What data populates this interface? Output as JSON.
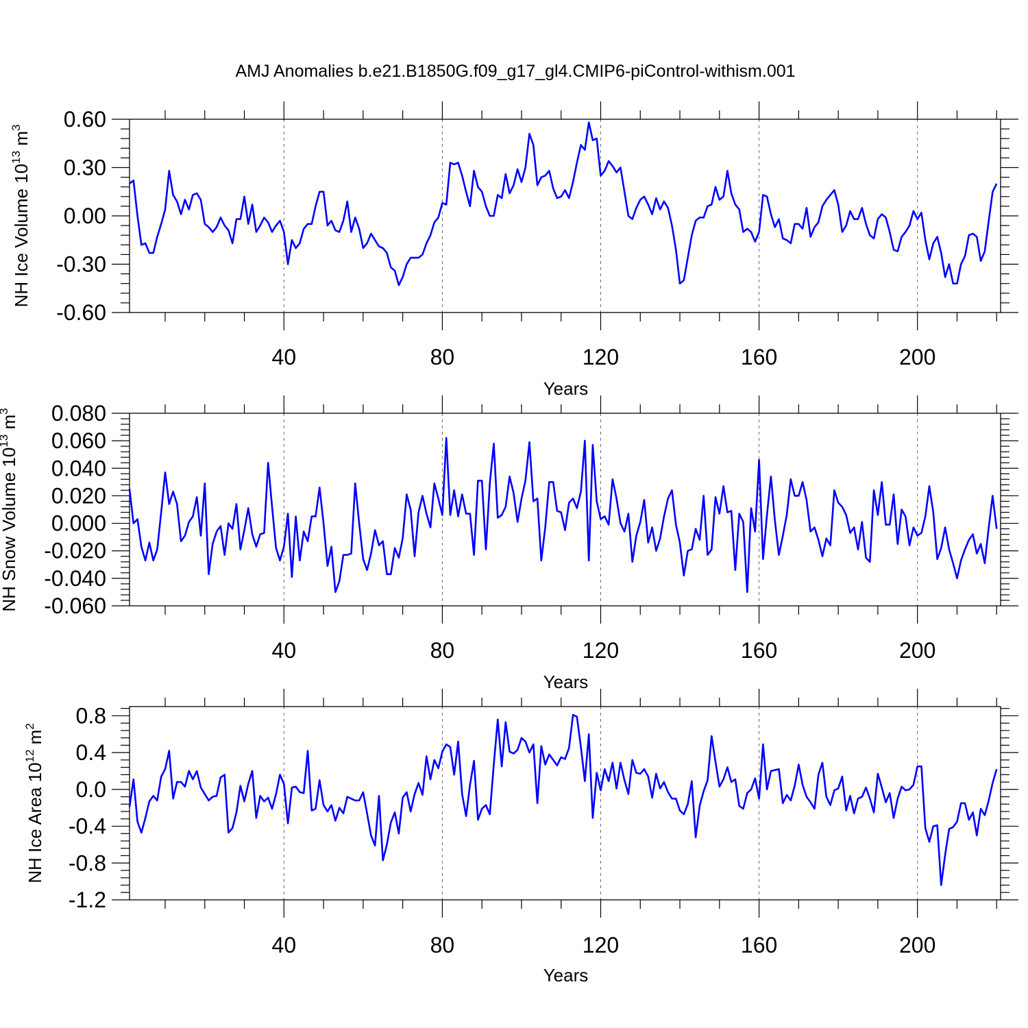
{
  "chart_data": {
    "title": "AMJ Anomalies b.e21.B1850G.f09_g17_gl4.CMIP6-piControl-withism.001",
    "panels": [
      {
        "type": "line",
        "xlabel": "Years",
        "ylabel": "NH Ice Volume 10",
        "ylabel_exp": "13",
        "ylabel_unit": " m",
        "ylabel_unit_exp": "3",
        "xlim": [
          1,
          221
        ],
        "ylim": [
          -0.6,
          0.6
        ],
        "xticks": [
          40,
          80,
          120,
          160,
          200
        ],
        "yticks": [
          -0.6,
          -0.3,
          0.0,
          0.3,
          0.6
        ],
        "ytick_labels": [
          "-0.60",
          "-0.30",
          "0.00",
          "0.30",
          "0.60"
        ],
        "y_minor_step": 0.06,
        "values": [
          0.2,
          0.22,
          0.0,
          -0.18,
          -0.17,
          -0.23,
          -0.23,
          -0.13,
          -0.05,
          0.04,
          0.28,
          0.13,
          0.09,
          0.01,
          0.1,
          0.04,
          0.13,
          0.14,
          0.1,
          -0.05,
          -0.07,
          -0.1,
          -0.07,
          -0.01,
          -0.06,
          -0.09,
          -0.17,
          -0.02,
          -0.02,
          0.12,
          -0.05,
          0.07,
          -0.1,
          -0.06,
          -0.01,
          -0.04,
          -0.1,
          -0.06,
          -0.03,
          -0.1,
          -0.3,
          -0.15,
          -0.2,
          -0.17,
          -0.08,
          -0.05,
          -0.05,
          0.06,
          0.15,
          0.15,
          -0.06,
          -0.03,
          -0.09,
          -0.1,
          -0.03,
          0.09,
          -0.1,
          -0.01,
          -0.08,
          -0.2,
          -0.17,
          -0.11,
          -0.15,
          -0.19,
          -0.2,
          -0.23,
          -0.32,
          -0.34,
          -0.43,
          -0.38,
          -0.3,
          -0.26,
          -0.26,
          -0.26,
          -0.24,
          -0.17,
          -0.12,
          -0.04,
          -0.01,
          0.08,
          0.07,
          0.33,
          0.32,
          0.33,
          0.25,
          0.15,
          0.06,
          0.28,
          0.18,
          0.15,
          0.06,
          -0.0,
          -0.0,
          0.13,
          0.11,
          0.26,
          0.14,
          0.19,
          0.29,
          0.21,
          0.3,
          0.51,
          0.44,
          0.19,
          0.24,
          0.25,
          0.28,
          0.17,
          0.11,
          0.12,
          0.16,
          0.11,
          0.21,
          0.33,
          0.44,
          0.41,
          0.58,
          0.47,
          0.48,
          0.25,
          0.28,
          0.34,
          0.31,
          0.27,
          0.3,
          0.15,
          -0.0,
          -0.02,
          0.05,
          0.1,
          0.12,
          0.07,
          0.01,
          0.11,
          0.04,
          0.09,
          0.05,
          -0.06,
          -0.21,
          -0.42,
          -0.4,
          -0.26,
          -0.12,
          -0.03,
          -0.01,
          -0.01,
          0.06,
          0.07,
          0.18,
          0.1,
          0.12,
          0.28,
          0.14,
          0.07,
          0.04,
          -0.1,
          -0.08,
          -0.1,
          -0.16,
          -0.1,
          0.13,
          0.12,
          0.01,
          -0.07,
          -0.02,
          -0.14,
          -0.15,
          -0.17,
          -0.05,
          -0.05,
          -0.08,
          0.05,
          -0.13,
          -0.07,
          -0.04,
          0.06,
          0.1,
          0.13,
          0.16,
          0.07,
          -0.1,
          -0.06,
          0.03,
          -0.02,
          -0.02,
          0.05,
          -0.05,
          -0.12,
          -0.14,
          -0.02,
          0.01,
          -0.01,
          -0.1,
          -0.21,
          -0.22,
          -0.13,
          -0.1,
          -0.06,
          0.03,
          -0.02,
          0.02,
          -0.15,
          -0.27,
          -0.17,
          -0.13,
          -0.23,
          -0.38,
          -0.3,
          -0.42,
          -0.42,
          -0.3,
          -0.25,
          -0.12,
          -0.11,
          -0.13,
          -0.28,
          -0.22,
          -0.03,
          0.15,
          0.2
        ]
      },
      {
        "type": "line",
        "xlabel": "Years",
        "ylabel": "NH Snow Volume 10",
        "ylabel_exp": "13",
        "ylabel_unit": " m",
        "ylabel_unit_exp": "3",
        "xlim": [
          1,
          221
        ],
        "ylim": [
          -0.06,
          0.08
        ],
        "xticks": [
          40,
          80,
          120,
          160,
          200
        ],
        "yticks": [
          -0.06,
          -0.04,
          -0.02,
          0.0,
          0.02,
          0.04,
          0.06,
          0.08
        ],
        "ytick_labels": [
          "-0.060",
          "-0.040",
          "-0.020",
          "0.000",
          "0.020",
          "0.040",
          "0.060",
          "0.080"
        ],
        "y_minor_step": 0.004,
        "values": [
          0.025,
          0.0,
          0.003,
          -0.017,
          -0.027,
          -0.014,
          -0.027,
          -0.019,
          0.008,
          0.037,
          0.014,
          0.023,
          0.014,
          -0.013,
          -0.009,
          0.001,
          0.005,
          0.019,
          -0.009,
          0.029,
          -0.037,
          -0.015,
          -0.006,
          -0.002,
          -0.023,
          -0.0,
          -0.004,
          0.014,
          -0.019,
          -0.005,
          0.011,
          -0.008,
          -0.017,
          -0.008,
          -0.007,
          0.044,
          0.012,
          -0.018,
          -0.027,
          -0.017,
          0.007,
          -0.039,
          0.005,
          -0.027,
          -0.006,
          -0.013,
          0.005,
          0.005,
          0.026,
          -0.0,
          -0.031,
          -0.017,
          -0.05,
          -0.042,
          -0.023,
          -0.023,
          -0.022,
          0.029,
          0.0,
          -0.026,
          -0.034,
          -0.022,
          -0.005,
          -0.016,
          -0.013,
          -0.037,
          -0.037,
          -0.018,
          -0.025,
          -0.011,
          0.021,
          0.01,
          -0.024,
          0.008,
          0.02,
          0.007,
          -0.003,
          0.029,
          0.018,
          0.006,
          0.062,
          0.006,
          0.024,
          0.005,
          0.021,
          0.007,
          0.007,
          -0.023,
          0.031,
          0.031,
          -0.019,
          0.029,
          0.058,
          0.004,
          0.006,
          0.012,
          0.034,
          0.022,
          0.001,
          0.018,
          0.031,
          0.059,
          0.016,
          0.018,
          -0.027,
          -0.003,
          0.03,
          0.03,
          0.009,
          0.008,
          -0.005,
          0.015,
          0.018,
          0.011,
          0.023,
          0.06,
          -0.027,
          0.057,
          0.016,
          0.003,
          0.005,
          -0.001,
          0.032,
          0.018,
          0.0,
          -0.006,
          0.007,
          -0.028,
          -0.009,
          0.001,
          0.017,
          -0.014,
          -0.003,
          -0.02,
          -0.011,
          0.005,
          0.018,
          0.024,
          -0.001,
          -0.014,
          -0.038,
          -0.02,
          -0.019,
          -0.004,
          -0.012,
          0.02,
          -0.023,
          -0.019,
          0.019,
          0.007,
          0.027,
          0.008,
          0.009,
          -0.034,
          0.007,
          0.001,
          -0.05,
          0.011,
          -0.006,
          0.046,
          -0.026,
          0.006,
          0.034,
          0.002,
          -0.023,
          -0.009,
          0.006,
          0.032,
          0.02,
          0.02,
          0.03,
          0.017,
          -0.006,
          -0.003,
          -0.012,
          -0.024,
          -0.011,
          -0.016,
          0.024,
          0.015,
          0.012,
          0.006,
          -0.007,
          -0.003,
          -0.019,
          0.001,
          -0.025,
          -0.028,
          0.024,
          0.006,
          0.03,
          -0.001,
          -0.001,
          0.021,
          -0.015,
          0.01,
          0.005,
          -0.016,
          -0.003,
          -0.009,
          -0.007,
          0.005,
          0.027,
          0.008,
          -0.026,
          -0.018,
          -0.003,
          -0.019,
          -0.029,
          -0.04,
          -0.027,
          -0.019,
          -0.012,
          -0.008,
          -0.022,
          -0.015,
          -0.029,
          -0.003,
          0.02,
          -0.004
        ]
      },
      {
        "type": "line",
        "xlabel": "Years",
        "ylabel": "NH Ice Area 10",
        "ylabel_exp": "12",
        "ylabel_unit": " m",
        "ylabel_unit_exp": "2",
        "xlim": [
          1,
          221
        ],
        "ylim": [
          -1.2,
          0.9
        ],
        "xticks": [
          40,
          80,
          120,
          160,
          200
        ],
        "yticks": [
          -1.2,
          -0.8,
          -0.4,
          0.0,
          0.4,
          0.8
        ],
        "ytick_labels": [
          "-1.2",
          "-0.8",
          "-0.4",
          "0.0",
          "0.4",
          "0.8"
        ],
        "y_minor_step": 0.08,
        "values": [
          -0.19,
          0.11,
          -0.35,
          -0.47,
          -0.31,
          -0.13,
          -0.07,
          -0.12,
          0.14,
          0.22,
          0.42,
          -0.1,
          0.08,
          0.08,
          0.03,
          0.2,
          0.11,
          0.2,
          0.02,
          -0.05,
          -0.12,
          -0.08,
          -0.07,
          0.13,
          0.16,
          -0.47,
          -0.42,
          -0.25,
          0.04,
          -0.13,
          0.06,
          0.2,
          -0.31,
          -0.07,
          -0.13,
          -0.09,
          -0.21,
          -0.05,
          0.16,
          0.06,
          -0.37,
          0.02,
          0.03,
          -0.03,
          -0.04,
          0.42,
          -0.23,
          -0.21,
          0.1,
          -0.17,
          -0.24,
          -0.17,
          -0.34,
          -0.2,
          -0.26,
          -0.08,
          -0.1,
          -0.12,
          -0.12,
          -0.03,
          -0.26,
          -0.5,
          -0.61,
          -0.07,
          -0.77,
          -0.6,
          -0.36,
          -0.25,
          -0.48,
          -0.09,
          -0.03,
          -0.24,
          -0.05,
          0.07,
          -0.06,
          0.36,
          0.11,
          0.32,
          0.23,
          0.41,
          0.49,
          0.46,
          0.16,
          0.52,
          -0.05,
          -0.29,
          0.05,
          0.31,
          -0.33,
          -0.21,
          -0.17,
          -0.27,
          0.27,
          0.76,
          0.25,
          0.73,
          0.41,
          0.39,
          0.43,
          0.56,
          0.52,
          0.4,
          0.49,
          -0.15,
          0.47,
          0.27,
          0.38,
          0.32,
          0.26,
          0.35,
          0.33,
          0.45,
          0.81,
          0.79,
          0.46,
          0.09,
          0.6,
          -0.31,
          0.18,
          -0.01,
          0.22,
          0.09,
          0.29,
          0.01,
          0.29,
          0.1,
          -0.05,
          0.32,
          0.18,
          0.17,
          0.22,
          0.14,
          -0.09,
          0.17,
          0.01,
          0.08,
          -0.03,
          -0.1,
          -0.1,
          -0.23,
          -0.27,
          -0.16,
          0.09,
          -0.52,
          -0.18,
          -0.02,
          0.1,
          0.58,
          0.3,
          0.03,
          0.11,
          0.24,
          0.08,
          0.11,
          -0.18,
          -0.21,
          -0.04,
          0.0,
          0.12,
          -0.1,
          0.49,
          0.0,
          0.2,
          0.21,
          0.22,
          -0.15,
          -0.06,
          -0.12,
          0.04,
          0.27,
          0.05,
          -0.08,
          -0.14,
          -0.21,
          0.16,
          0.29,
          -0.08,
          -0.17,
          -0.01,
          0.01,
          0.14,
          -0.23,
          -0.07,
          -0.26,
          -0.1,
          -0.08,
          0.02,
          -0.1,
          -0.25,
          0.17,
          0.02,
          -0.14,
          -0.04,
          -0.31,
          -0.1,
          0.03,
          -0.01,
          0.0,
          0.05,
          0.25,
          0.25,
          -0.42,
          -0.57,
          -0.4,
          -0.39,
          -1.04,
          -0.71,
          -0.43,
          -0.41,
          -0.35,
          -0.15,
          -0.15,
          -0.33,
          -0.25,
          -0.5,
          -0.21,
          -0.28,
          -0.12,
          0.07,
          0.22
        ]
      }
    ]
  }
}
